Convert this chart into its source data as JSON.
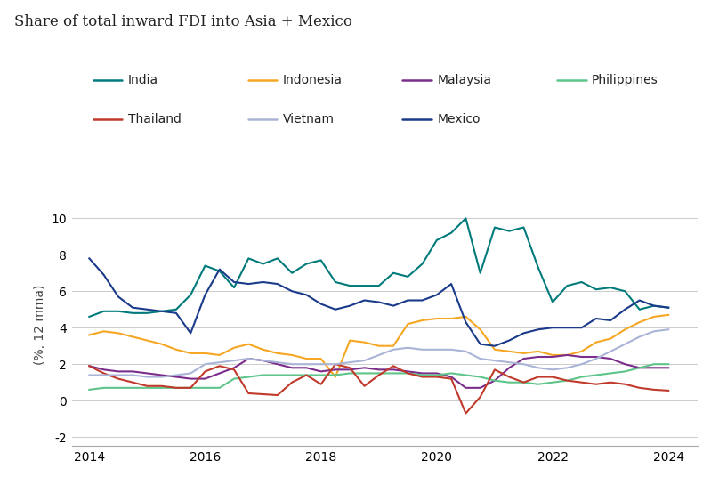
{
  "title": "Share of total inward FDI into Asia + Mexico",
  "ylabel": "(%, 12 mma)",
  "ylim": [
    -2.5,
    10.8
  ],
  "yticks": [
    -2,
    0,
    2,
    4,
    6,
    8,
    10
  ],
  "xlim": [
    2013.7,
    2024.5
  ],
  "xticks": [
    2014,
    2016,
    2018,
    2020,
    2022,
    2024
  ],
  "background_color": "#ffffff",
  "series": {
    "India": {
      "color": "#007a7a",
      "x": [
        2014.0,
        2014.25,
        2014.5,
        2014.75,
        2015.0,
        2015.25,
        2015.5,
        2015.75,
        2016.0,
        2016.25,
        2016.5,
        2016.75,
        2017.0,
        2017.25,
        2017.5,
        2017.75,
        2018.0,
        2018.25,
        2018.5,
        2018.75,
        2019.0,
        2019.25,
        2019.5,
        2019.75,
        2020.0,
        2020.25,
        2020.5,
        2020.75,
        2021.0,
        2021.25,
        2021.5,
        2021.75,
        2022.0,
        2022.25,
        2022.5,
        2022.75,
        2023.0,
        2023.25,
        2023.5,
        2023.75,
        2024.0
      ],
      "y": [
        4.6,
        4.9,
        4.9,
        4.8,
        4.8,
        4.9,
        5.0,
        5.8,
        7.4,
        7.1,
        6.2,
        7.8,
        7.5,
        7.8,
        7.0,
        7.5,
        7.7,
        6.5,
        6.3,
        6.3,
        6.3,
        7.0,
        6.8,
        7.5,
        8.8,
        9.2,
        10.0,
        7.0,
        9.5,
        9.3,
        9.5,
        7.3,
        5.4,
        6.3,
        6.5,
        6.1,
        6.2,
        6.0,
        5.0,
        5.2,
        5.1
      ]
    },
    "Indonesia": {
      "color": "#f5a623",
      "x": [
        2014.0,
        2014.25,
        2014.5,
        2014.75,
        2015.0,
        2015.25,
        2015.5,
        2015.75,
        2016.0,
        2016.25,
        2016.5,
        2016.75,
        2017.0,
        2017.25,
        2017.5,
        2017.75,
        2018.0,
        2018.25,
        2018.5,
        2018.75,
        2019.0,
        2019.25,
        2019.5,
        2019.75,
        2020.0,
        2020.25,
        2020.5,
        2020.75,
        2021.0,
        2021.25,
        2021.5,
        2021.75,
        2022.0,
        2022.25,
        2022.5,
        2022.75,
        2023.0,
        2023.25,
        2023.5,
        2023.75,
        2024.0
      ],
      "y": [
        3.6,
        3.8,
        3.7,
        3.5,
        3.3,
        3.1,
        2.8,
        2.6,
        2.6,
        2.5,
        2.9,
        3.1,
        2.8,
        2.6,
        2.5,
        2.3,
        2.3,
        1.3,
        3.3,
        3.2,
        3.0,
        3.0,
        4.2,
        4.4,
        4.5,
        4.5,
        4.6,
        3.9,
        2.8,
        2.7,
        2.6,
        2.7,
        2.5,
        2.5,
        2.7,
        3.2,
        3.4,
        3.9,
        4.3,
        4.6,
        4.7
      ]
    },
    "Malaysia": {
      "color": "#7b2d8b",
      "x": [
        2014.0,
        2014.25,
        2014.5,
        2014.75,
        2015.0,
        2015.25,
        2015.5,
        2015.75,
        2016.0,
        2016.25,
        2016.5,
        2016.75,
        2017.0,
        2017.25,
        2017.5,
        2017.75,
        2018.0,
        2018.25,
        2018.5,
        2018.75,
        2019.0,
        2019.25,
        2019.5,
        2019.75,
        2020.0,
        2020.25,
        2020.5,
        2020.75,
        2021.0,
        2021.25,
        2021.5,
        2021.75,
        2022.0,
        2022.25,
        2022.5,
        2022.75,
        2023.0,
        2023.25,
        2023.5,
        2023.75,
        2024.0
      ],
      "y": [
        1.9,
        1.7,
        1.6,
        1.6,
        1.5,
        1.4,
        1.3,
        1.2,
        1.2,
        1.5,
        1.8,
        2.3,
        2.2,
        2.0,
        1.8,
        1.8,
        1.6,
        1.7,
        1.7,
        1.8,
        1.7,
        1.7,
        1.6,
        1.5,
        1.5,
        1.3,
        0.7,
        0.7,
        1.1,
        1.8,
        2.3,
        2.4,
        2.4,
        2.5,
        2.4,
        2.4,
        2.3,
        2.0,
        1.8,
        1.8,
        1.8
      ]
    },
    "Philippines": {
      "color": "#5ec48a",
      "x": [
        2014.0,
        2014.25,
        2014.5,
        2014.75,
        2015.0,
        2015.25,
        2015.5,
        2015.75,
        2016.0,
        2016.25,
        2016.5,
        2016.75,
        2017.0,
        2017.25,
        2017.5,
        2017.75,
        2018.0,
        2018.25,
        2018.5,
        2018.75,
        2019.0,
        2019.25,
        2019.5,
        2019.75,
        2020.0,
        2020.25,
        2020.5,
        2020.75,
        2021.0,
        2021.25,
        2021.5,
        2021.75,
        2022.0,
        2022.25,
        2022.5,
        2022.75,
        2023.0,
        2023.25,
        2023.5,
        2023.75,
        2024.0
      ],
      "y": [
        0.6,
        0.7,
        0.7,
        0.7,
        0.7,
        0.7,
        0.7,
        0.7,
        0.7,
        0.7,
        1.2,
        1.3,
        1.4,
        1.4,
        1.4,
        1.4,
        1.4,
        1.4,
        1.5,
        1.5,
        1.5,
        1.5,
        1.5,
        1.4,
        1.4,
        1.5,
        1.4,
        1.3,
        1.1,
        1.0,
        1.0,
        0.9,
        1.0,
        1.1,
        1.3,
        1.4,
        1.5,
        1.6,
        1.8,
        2.0,
        2.0
      ]
    },
    "Thailand": {
      "color": "#c0392b",
      "x": [
        2014.0,
        2014.25,
        2014.5,
        2014.75,
        2015.0,
        2015.25,
        2015.5,
        2015.75,
        2016.0,
        2016.25,
        2016.5,
        2016.75,
        2017.0,
        2017.25,
        2017.5,
        2017.75,
        2018.0,
        2018.25,
        2018.5,
        2018.75,
        2019.0,
        2019.25,
        2019.5,
        2019.75,
        2020.0,
        2020.25,
        2020.5,
        2020.75,
        2021.0,
        2021.25,
        2021.5,
        2021.75,
        2022.0,
        2022.25,
        2022.5,
        2022.75,
        2023.0,
        2023.25,
        2023.5,
        2023.75,
        2024.0
      ],
      "y": [
        1.9,
        1.5,
        1.2,
        1.0,
        0.8,
        0.8,
        0.7,
        0.7,
        1.6,
        1.9,
        1.7,
        0.4,
        0.35,
        0.3,
        1.0,
        1.4,
        0.9,
        2.0,
        1.8,
        0.8,
        1.4,
        1.9,
        1.5,
        1.3,
        1.3,
        1.2,
        -0.7,
        0.2,
        1.7,
        1.3,
        1.0,
        1.3,
        1.3,
        1.1,
        1.0,
        0.9,
        1.0,
        0.9,
        0.7,
        0.6,
        0.55
      ]
    },
    "Vietnam": {
      "color": "#aab4d6",
      "x": [
        2014.0,
        2014.25,
        2014.5,
        2014.75,
        2015.0,
        2015.25,
        2015.5,
        2015.75,
        2016.0,
        2016.25,
        2016.5,
        2016.75,
        2017.0,
        2017.25,
        2017.5,
        2017.75,
        2018.0,
        2018.25,
        2018.5,
        2018.75,
        2019.0,
        2019.25,
        2019.5,
        2019.75,
        2020.0,
        2020.25,
        2020.5,
        2020.75,
        2021.0,
        2021.25,
        2021.5,
        2021.75,
        2022.0,
        2022.25,
        2022.5,
        2022.75,
        2023.0,
        2023.25,
        2023.5,
        2023.75,
        2024.0
      ],
      "y": [
        1.4,
        1.4,
        1.4,
        1.4,
        1.3,
        1.3,
        1.4,
        1.5,
        2.0,
        2.1,
        2.2,
        2.3,
        2.2,
        2.1,
        2.0,
        2.0,
        2.0,
        2.0,
        2.1,
        2.2,
        2.5,
        2.8,
        2.9,
        2.8,
        2.8,
        2.8,
        2.7,
        2.3,
        2.2,
        2.1,
        2.0,
        1.8,
        1.7,
        1.8,
        2.0,
        2.3,
        2.7,
        3.1,
        3.5,
        3.8,
        3.9
      ]
    },
    "Mexico": {
      "color": "#1a3a8a",
      "x": [
        2014.0,
        2014.25,
        2014.5,
        2014.75,
        2015.0,
        2015.25,
        2015.5,
        2015.75,
        2016.0,
        2016.25,
        2016.5,
        2016.75,
        2017.0,
        2017.25,
        2017.5,
        2017.75,
        2018.0,
        2018.25,
        2018.5,
        2018.75,
        2019.0,
        2019.25,
        2019.5,
        2019.75,
        2020.0,
        2020.25,
        2020.5,
        2020.75,
        2021.0,
        2021.25,
        2021.5,
        2021.75,
        2022.0,
        2022.25,
        2022.5,
        2022.75,
        2023.0,
        2023.25,
        2023.5,
        2023.75,
        2024.0
      ],
      "y": [
        7.8,
        6.9,
        5.7,
        5.1,
        5.0,
        4.9,
        4.8,
        3.7,
        5.8,
        7.2,
        6.5,
        6.4,
        6.5,
        6.4,
        6.0,
        5.8,
        5.3,
        5.0,
        5.2,
        5.5,
        5.4,
        5.2,
        5.5,
        5.5,
        5.8,
        6.4,
        4.3,
        3.1,
        3.0,
        3.3,
        3.7,
        3.9,
        4.0,
        4.0,
        4.0,
        4.5,
        4.4,
        5.0,
        5.5,
        5.2,
        5.1
      ]
    }
  },
  "legend_row1": [
    "India",
    "Indonesia",
    "Malaysia",
    "Philippines"
  ],
  "legend_row2": [
    "Thailand",
    "Vietnam",
    "Mexico"
  ],
  "title_fontsize": 12,
  "label_fontsize": 10,
  "tick_fontsize": 10,
  "legend_fontsize": 10
}
